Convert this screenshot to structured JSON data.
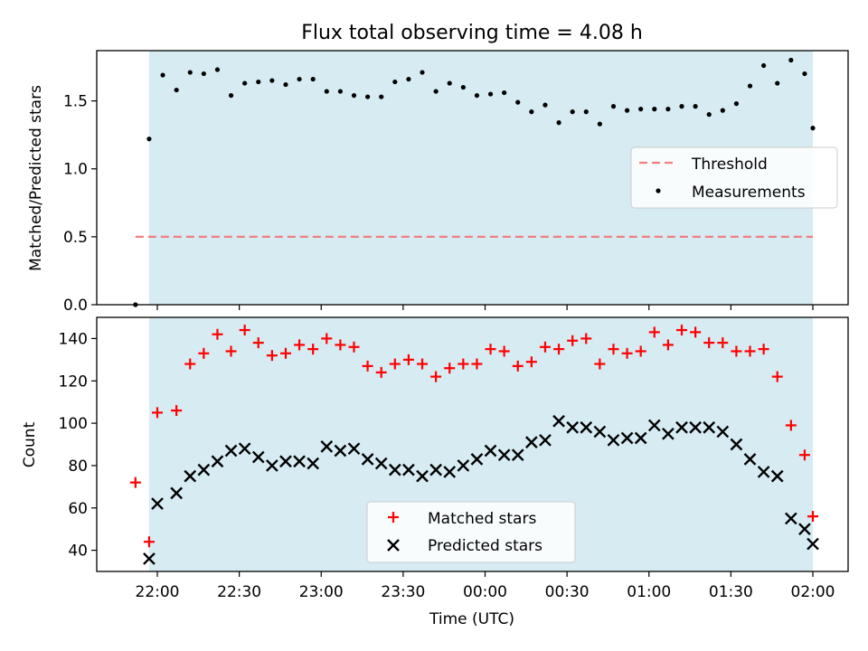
{
  "chart_data": {
    "title": "Flux total observing time = 4.08 h",
    "xlabel": "Time (UTC)",
    "x_ticks": [
      "22:00",
      "22:30",
      "23:00",
      "23:30",
      "00:00",
      "00:30",
      "01:00",
      "01:30",
      "02:00"
    ],
    "shaded_region": {
      "start": "21:57",
      "end": "02:00",
      "color": "#add8e6"
    },
    "panels": [
      {
        "type": "scatter",
        "ylabel": "Matched/Predicted stars",
        "ylim": [
          0,
          1.87
        ],
        "y_ticks": [
          "0.0",
          "0.5",
          "1.0",
          "1.5"
        ],
        "threshold": {
          "name": "Threshold",
          "value": 0.5,
          "color": "#f08080"
        },
        "legend": {
          "placement": "center-right",
          "entries": [
            "Threshold",
            "Measurements"
          ]
        },
        "series": [
          {
            "name": "Measurements",
            "color": "#000000",
            "x": [
              "21:52",
              "21:57",
              "22:02",
              "22:07",
              "22:12",
              "22:17",
              "22:22",
              "22:27",
              "22:32",
              "22:37",
              "22:42",
              "22:47",
              "22:52",
              "22:57",
              "23:02",
              "23:07",
              "23:12",
              "23:17",
              "23:22",
              "23:27",
              "23:32",
              "23:37",
              "23:42",
              "23:47",
              "23:52",
              "23:57",
              "00:02",
              "00:07",
              "00:12",
              "00:17",
              "00:22",
              "00:27",
              "00:32",
              "00:37",
              "00:42",
              "00:47",
              "00:52",
              "00:57",
              "01:02",
              "01:07",
              "01:12",
              "01:17",
              "01:22",
              "01:27",
              "01:32",
              "01:37",
              "01:42",
              "01:47",
              "01:52",
              "01:57",
              "02:00"
            ],
            "y": [
              0.0,
              1.22,
              1.69,
              1.58,
              1.71,
              1.7,
              1.73,
              1.54,
              1.63,
              1.64,
              1.65,
              1.62,
              1.66,
              1.66,
              1.57,
              1.57,
              1.54,
              1.53,
              1.53,
              1.64,
              1.66,
              1.71,
              1.57,
              1.63,
              1.6,
              1.54,
              1.55,
              1.56,
              1.49,
              1.42,
              1.47,
              1.34,
              1.42,
              1.42,
              1.33,
              1.46,
              1.43,
              1.44,
              1.44,
              1.44,
              1.46,
              1.46,
              1.4,
              1.43,
              1.48,
              1.61,
              1.76,
              1.63,
              1.8,
              1.7,
              1.3
            ]
          }
        ]
      },
      {
        "type": "scatter",
        "ylabel": "Count",
        "ylim": [
          30,
          150
        ],
        "y_ticks": [
          "40",
          "60",
          "80",
          "100",
          "120",
          "140"
        ],
        "legend": {
          "placement": "bottom-center",
          "entries": [
            "Matched stars",
            "Predicted stars"
          ]
        },
        "series": [
          {
            "name": "Matched stars",
            "marker": "plus",
            "color": "#ff0000",
            "x": [
              "21:52",
              "21:57",
              "22:00",
              "22:07",
              "22:12",
              "22:17",
              "22:22",
              "22:27",
              "22:32",
              "22:37",
              "22:42",
              "22:47",
              "22:52",
              "22:57",
              "23:02",
              "23:07",
              "23:12",
              "23:17",
              "23:22",
              "23:27",
              "23:32",
              "23:37",
              "23:42",
              "23:47",
              "23:52",
              "23:57",
              "00:02",
              "00:07",
              "00:12",
              "00:17",
              "00:22",
              "00:27",
              "00:32",
              "00:37",
              "00:42",
              "00:47",
              "00:52",
              "00:57",
              "01:02",
              "01:07",
              "01:12",
              "01:17",
              "01:22",
              "01:27",
              "01:32",
              "01:37",
              "01:42",
              "01:47",
              "01:52",
              "01:57",
              "02:00"
            ],
            "y": [
              72,
              44,
              105,
              106,
              128,
              133,
              142,
              134,
              144,
              138,
              132,
              133,
              137,
              135,
              140,
              137,
              136,
              127,
              124,
              128,
              130,
              128,
              122,
              126,
              128,
              128,
              135,
              134,
              127,
              129,
              136,
              135,
              139,
              140,
              128,
              135,
              133,
              134,
              143,
              137,
              144,
              143,
              138,
              138,
              134,
              134,
              135,
              122,
              99,
              85,
              56
            ]
          },
          {
            "name": "Predicted stars",
            "marker": "x",
            "color": "#000000",
            "x": [
              "21:57",
              "22:00",
              "22:07",
              "22:12",
              "22:17",
              "22:22",
              "22:27",
              "22:32",
              "22:37",
              "22:42",
              "22:47",
              "22:52",
              "22:57",
              "23:02",
              "23:07",
              "23:12",
              "23:17",
              "23:22",
              "23:27",
              "23:32",
              "23:37",
              "23:42",
              "23:47",
              "23:52",
              "23:57",
              "00:02",
              "00:07",
              "00:12",
              "00:17",
              "00:22",
              "00:27",
              "00:32",
              "00:37",
              "00:42",
              "00:47",
              "00:52",
              "00:57",
              "01:02",
              "01:07",
              "01:12",
              "01:17",
              "01:22",
              "01:27",
              "01:32",
              "01:37",
              "01:42",
              "01:47",
              "01:52",
              "01:57",
              "02:00"
            ],
            "y": [
              36,
              62,
              67,
              75,
              78,
              82,
              87,
              88,
              84,
              80,
              82,
              82,
              81,
              89,
              87,
              88,
              83,
              81,
              78,
              78,
              75,
              78,
              77,
              80,
              83,
              87,
              85,
              85,
              91,
              92,
              101,
              98,
              98,
              96,
              92,
              93,
              93,
              99,
              95,
              98,
              98,
              98,
              96,
              90,
              83,
              77,
              75,
              55,
              50,
              43
            ]
          }
        ]
      }
    ]
  }
}
